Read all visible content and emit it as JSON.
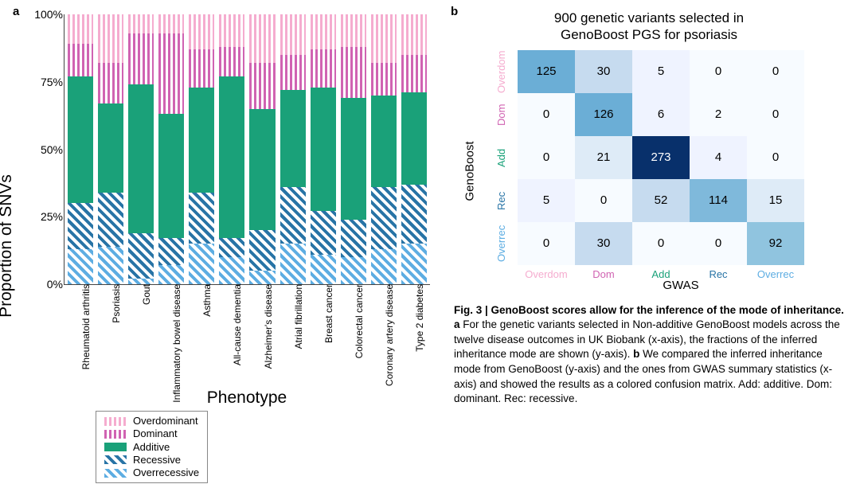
{
  "panel_a": {
    "label": "a",
    "y_axis_label": "Proportion of SNVs",
    "x_axis_label": "Phenotype",
    "y_ticks": [
      {
        "pos": 0,
        "label": "0%"
      },
      {
        "pos": 25,
        "label": "25%"
      },
      {
        "pos": 50,
        "label": "50%"
      },
      {
        "pos": 75,
        "label": "75%"
      },
      {
        "pos": 100,
        "label": "100%"
      }
    ],
    "series": [
      {
        "key": "overrec",
        "label": "Overrecessive",
        "legend_class": "overrec"
      },
      {
        "key": "rec",
        "label": "Recessive",
        "legend_class": "rec"
      },
      {
        "key": "add",
        "label": "Additive",
        "legend_class": "add"
      },
      {
        "key": "dom",
        "label": "Dominant",
        "legend_class": "dom"
      },
      {
        "key": "overdom",
        "label": "Overdominant",
        "legend_class": "overdom"
      }
    ],
    "legend_order": [
      "overdom",
      "dom",
      "add",
      "rec",
      "overrec"
    ],
    "legend_labels": {
      "overdom": "Overdominant",
      "dom": "Dominant",
      "add": "Additive",
      "rec": "Recessive",
      "overrec": "Overrecessive"
    },
    "bars": [
      {
        "name": "Rheumatoid\narthritis",
        "overrec": 13,
        "rec": 17,
        "add": 47,
        "dom": 12,
        "overdom": 11
      },
      {
        "name": "Psoriasis",
        "overrec": 14,
        "rec": 20,
        "add": 33,
        "dom": 15,
        "overdom": 18
      },
      {
        "name": "Gout",
        "overrec": 2,
        "rec": 17,
        "add": 55,
        "dom": 19,
        "overdom": 7
      },
      {
        "name": "Inflammatory\nbowel disease",
        "overrec": 7,
        "rec": 10,
        "add": 46,
        "dom": 30,
        "overdom": 7
      },
      {
        "name": "Asthma",
        "overrec": 15,
        "rec": 19,
        "add": 39,
        "dom": 14,
        "overdom": 13
      },
      {
        "name": "All-cause\ndementia",
        "overrec": 10,
        "rec": 7,
        "add": 60,
        "dom": 11,
        "overdom": 12
      },
      {
        "name": "Alzheimer's\ndisease",
        "overrec": 5,
        "rec": 15,
        "add": 45,
        "dom": 17,
        "overdom": 18
      },
      {
        "name": "Atrial\nfibrillation",
        "overrec": 15,
        "rec": 21,
        "add": 36,
        "dom": 13,
        "overdom": 15
      },
      {
        "name": "Breast cancer",
        "overrec": 11,
        "rec": 16,
        "add": 46,
        "dom": 14,
        "overdom": 13
      },
      {
        "name": "Colorectal\ncancer",
        "overrec": 10,
        "rec": 14,
        "add": 45,
        "dom": 19,
        "overdom": 12
      },
      {
        "name": "Coronary artery\ndisease",
        "overrec": 13,
        "rec": 23,
        "add": 34,
        "dom": 12,
        "overdom": 18
      },
      {
        "name": "Type 2\ndiabetes",
        "overrec": 15,
        "rec": 22,
        "add": 34,
        "dom": 14,
        "overdom": 15
      }
    ]
  },
  "panel_b": {
    "label": "b",
    "title_line1": "900 genetic variants selected in",
    "title_line2": "GenoBoost PGS for psoriasis",
    "y_axis_label": "GenoBoost",
    "x_axis_label": "GWAS",
    "axis_categories": [
      {
        "label": "Overdom",
        "color": "#f5accf"
      },
      {
        "label": "Dom",
        "color": "#d063b2"
      },
      {
        "label": "Add",
        "color": "#1aa179"
      },
      {
        "label": "Rec",
        "color": "#2874a6"
      },
      {
        "label": "Overrec",
        "color": "#5dade2"
      }
    ],
    "cells": [
      [
        125,
        30,
        5,
        0,
        0
      ],
      [
        0,
        126,
        6,
        2,
        0
      ],
      [
        0,
        21,
        273,
        4,
        0
      ],
      [
        5,
        0,
        52,
        114,
        15
      ],
      [
        0,
        30,
        0,
        0,
        92
      ]
    ],
    "cell_bg": [
      [
        "#6baed6",
        "#c6dbef",
        "#eff3ff",
        "#f7fbff",
        "#f7fbff"
      ],
      [
        "#f7fbff",
        "#6baed6",
        "#eff3ff",
        "#f7fbff",
        "#f7fbff"
      ],
      [
        "#f7fbff",
        "#deebf7",
        "#08306b",
        "#eff3ff",
        "#f7fbff"
      ],
      [
        "#eff3ff",
        "#f7fbff",
        "#c6dbef",
        "#7fb9db",
        "#deebf7"
      ],
      [
        "#f7fbff",
        "#c6dbef",
        "#f7fbff",
        "#f7fbff",
        "#90c4df"
      ]
    ],
    "cell_fg": [
      [
        "#000",
        "#000",
        "#000",
        "#000",
        "#000"
      ],
      [
        "#000",
        "#000",
        "#000",
        "#000",
        "#000"
      ],
      [
        "#000",
        "#000",
        "#fff",
        "#000",
        "#000"
      ],
      [
        "#000",
        "#000",
        "#000",
        "#000",
        "#000"
      ],
      [
        "#000",
        "#000",
        "#000",
        "#000",
        "#000"
      ]
    ]
  },
  "caption": {
    "lead": "Fig. 3 | GenoBoost scores allow for the inference of the mode of inheritance.",
    "body_a_prefix": "a",
    "body_a": " For the genetic variants selected in Non-additive GenoBoost models across the twelve disease outcomes in UK Biobank (x-axis), the fractions of the inferred inheritance mode are shown (y-axis). ",
    "body_b_prefix": "b",
    "body_b": " We compared the inferred inheritance mode from GenoBoost (y-axis) and the ones from GWAS summary statistics (x-axis) and showed the results as a colored confusion matrix. Add: additive. Dom: dominant. Rec: recessive."
  }
}
